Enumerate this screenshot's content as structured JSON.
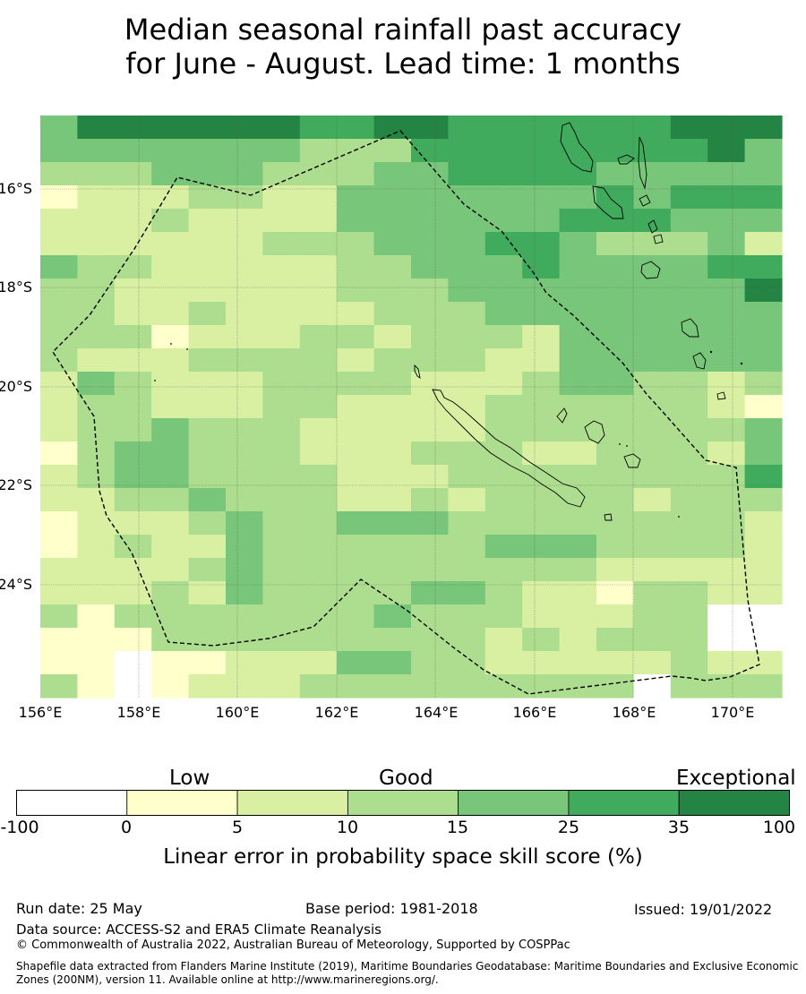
{
  "title": {
    "line1": "Median seasonal rainfall past accuracy",
    "line2": "for June - August. Lead time: 1 months"
  },
  "map": {
    "lat_labels": [
      "16°S",
      "18°S",
      "20°S",
      "22°S",
      "24°S"
    ],
    "lon_labels": [
      "156°E",
      "158°E",
      "160°E",
      "162°E",
      "164°E",
      "166°E",
      "168°E",
      "170°E"
    ],
    "category_colors": [
      "#ffffff",
      "#ffffcc",
      "#d9f0a3",
      "#addd8e",
      "#78c679",
      "#41ab5d",
      "#238443"
    ],
    "grid_levels": [
      "46666665566555555666",
      "44444443335555555564",
      "33344433344555544444",
      "12223322444444454555",
      "22232222444444555444",
      "22222233344455433342",
      "43322222334445444455",
      "33222222333444444446",
      "33223222233344444444",
      "33312223323332444444",
      "32223333233322444444",
      "24322233332223443323",
      "23322233222233333321",
      "23343332222233333334",
      "13443332223332233324",
      "23443333222333333335",
      "22334333223233332333",
      "12223433444333333332",
      "12322433333344433332",
      "22223433333333322222",
      "22232433334432213322",
      "31333333343332223300",
      "11133333333323233300",
      "11011222443322222322",
      "31012223333333330333"
    ]
  },
  "legend": {
    "categories": [
      "Low",
      "Good",
      "Exceptional"
    ],
    "ticks": [
      "-100",
      "0",
      "5",
      "10",
      "15",
      "25",
      "35",
      "100"
    ],
    "title": "Linear error in probability space skill score (%)"
  },
  "footer": {
    "run_date": "Run date: 25 May",
    "base_period": "Base period: 1981-2018",
    "issued": "Issued: 19/01/2022",
    "data_source": "Data source: ACCESS-S2 and ERA5 Climate Reanalysis",
    "copyright": "© Commonwealth of Australia 2022, Australian Bureau of Meteorology, Supported by COSPPac",
    "shapefile": "Shapefile data extracted from Flanders Marine Institute (2019), Maritime Boundaries Geodatabase: Maritime Boundaries and Exclusive Economic Zones (200NM), version 11. Available online at http://www.marineregions.org/."
  }
}
